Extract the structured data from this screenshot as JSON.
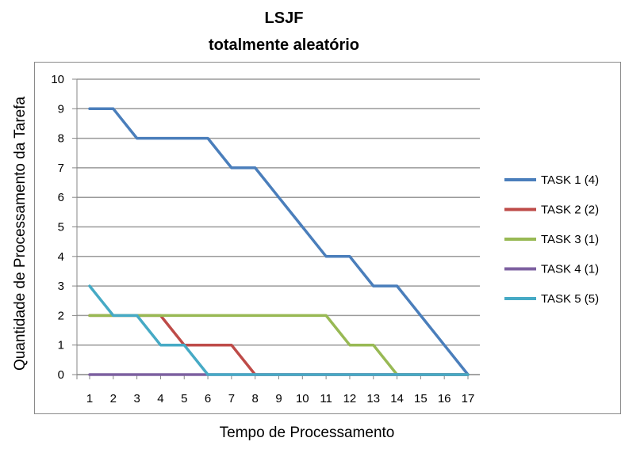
{
  "chart_data": {
    "type": "line",
    "title": "LSJF",
    "subtitle": "totalmente aleatório",
    "xlabel": "Tempo de Processamento",
    "ylabel": "Quantidade de Processamento da Tarefa",
    "x": [
      1,
      2,
      3,
      4,
      5,
      6,
      7,
      8,
      9,
      10,
      11,
      12,
      13,
      14,
      15,
      16,
      17
    ],
    "xlim": [
      1,
      17
    ],
    "ylim": [
      0,
      10
    ],
    "yticks": [
      0,
      1,
      2,
      3,
      4,
      5,
      6,
      7,
      8,
      9,
      10
    ],
    "grid": true,
    "legend_position": "right",
    "series": [
      {
        "name": "TASK 1 (4)",
        "color": "#4a7ebb",
        "values": [
          9,
          9,
          8,
          8,
          8,
          8,
          7,
          7,
          6,
          5,
          4,
          4,
          3,
          3,
          2,
          1,
          0
        ]
      },
      {
        "name": "TASK 2 (2)",
        "color": "#be4b48",
        "values": [
          2,
          2,
          2,
          2,
          1,
          1,
          1,
          0,
          0,
          0,
          0,
          0,
          0,
          0,
          0,
          0,
          0
        ]
      },
      {
        "name": "TASK 3 (1)",
        "color": "#98b954",
        "values": [
          2,
          2,
          2,
          2,
          2,
          2,
          2,
          2,
          2,
          2,
          2,
          1,
          1,
          0,
          0,
          0,
          0
        ]
      },
      {
        "name": "TASK 4 (1)",
        "color": "#7d60a0",
        "values": [
          0,
          0,
          0,
          0,
          0,
          0,
          0,
          0,
          0,
          0,
          0,
          0,
          0,
          0,
          0,
          0,
          0
        ]
      },
      {
        "name": "TASK 5 (5)",
        "color": "#46aac5",
        "values": [
          3,
          2,
          2,
          1,
          1,
          0,
          0,
          0,
          0,
          0,
          0,
          0,
          0,
          0,
          0,
          0,
          0
        ]
      }
    ]
  }
}
